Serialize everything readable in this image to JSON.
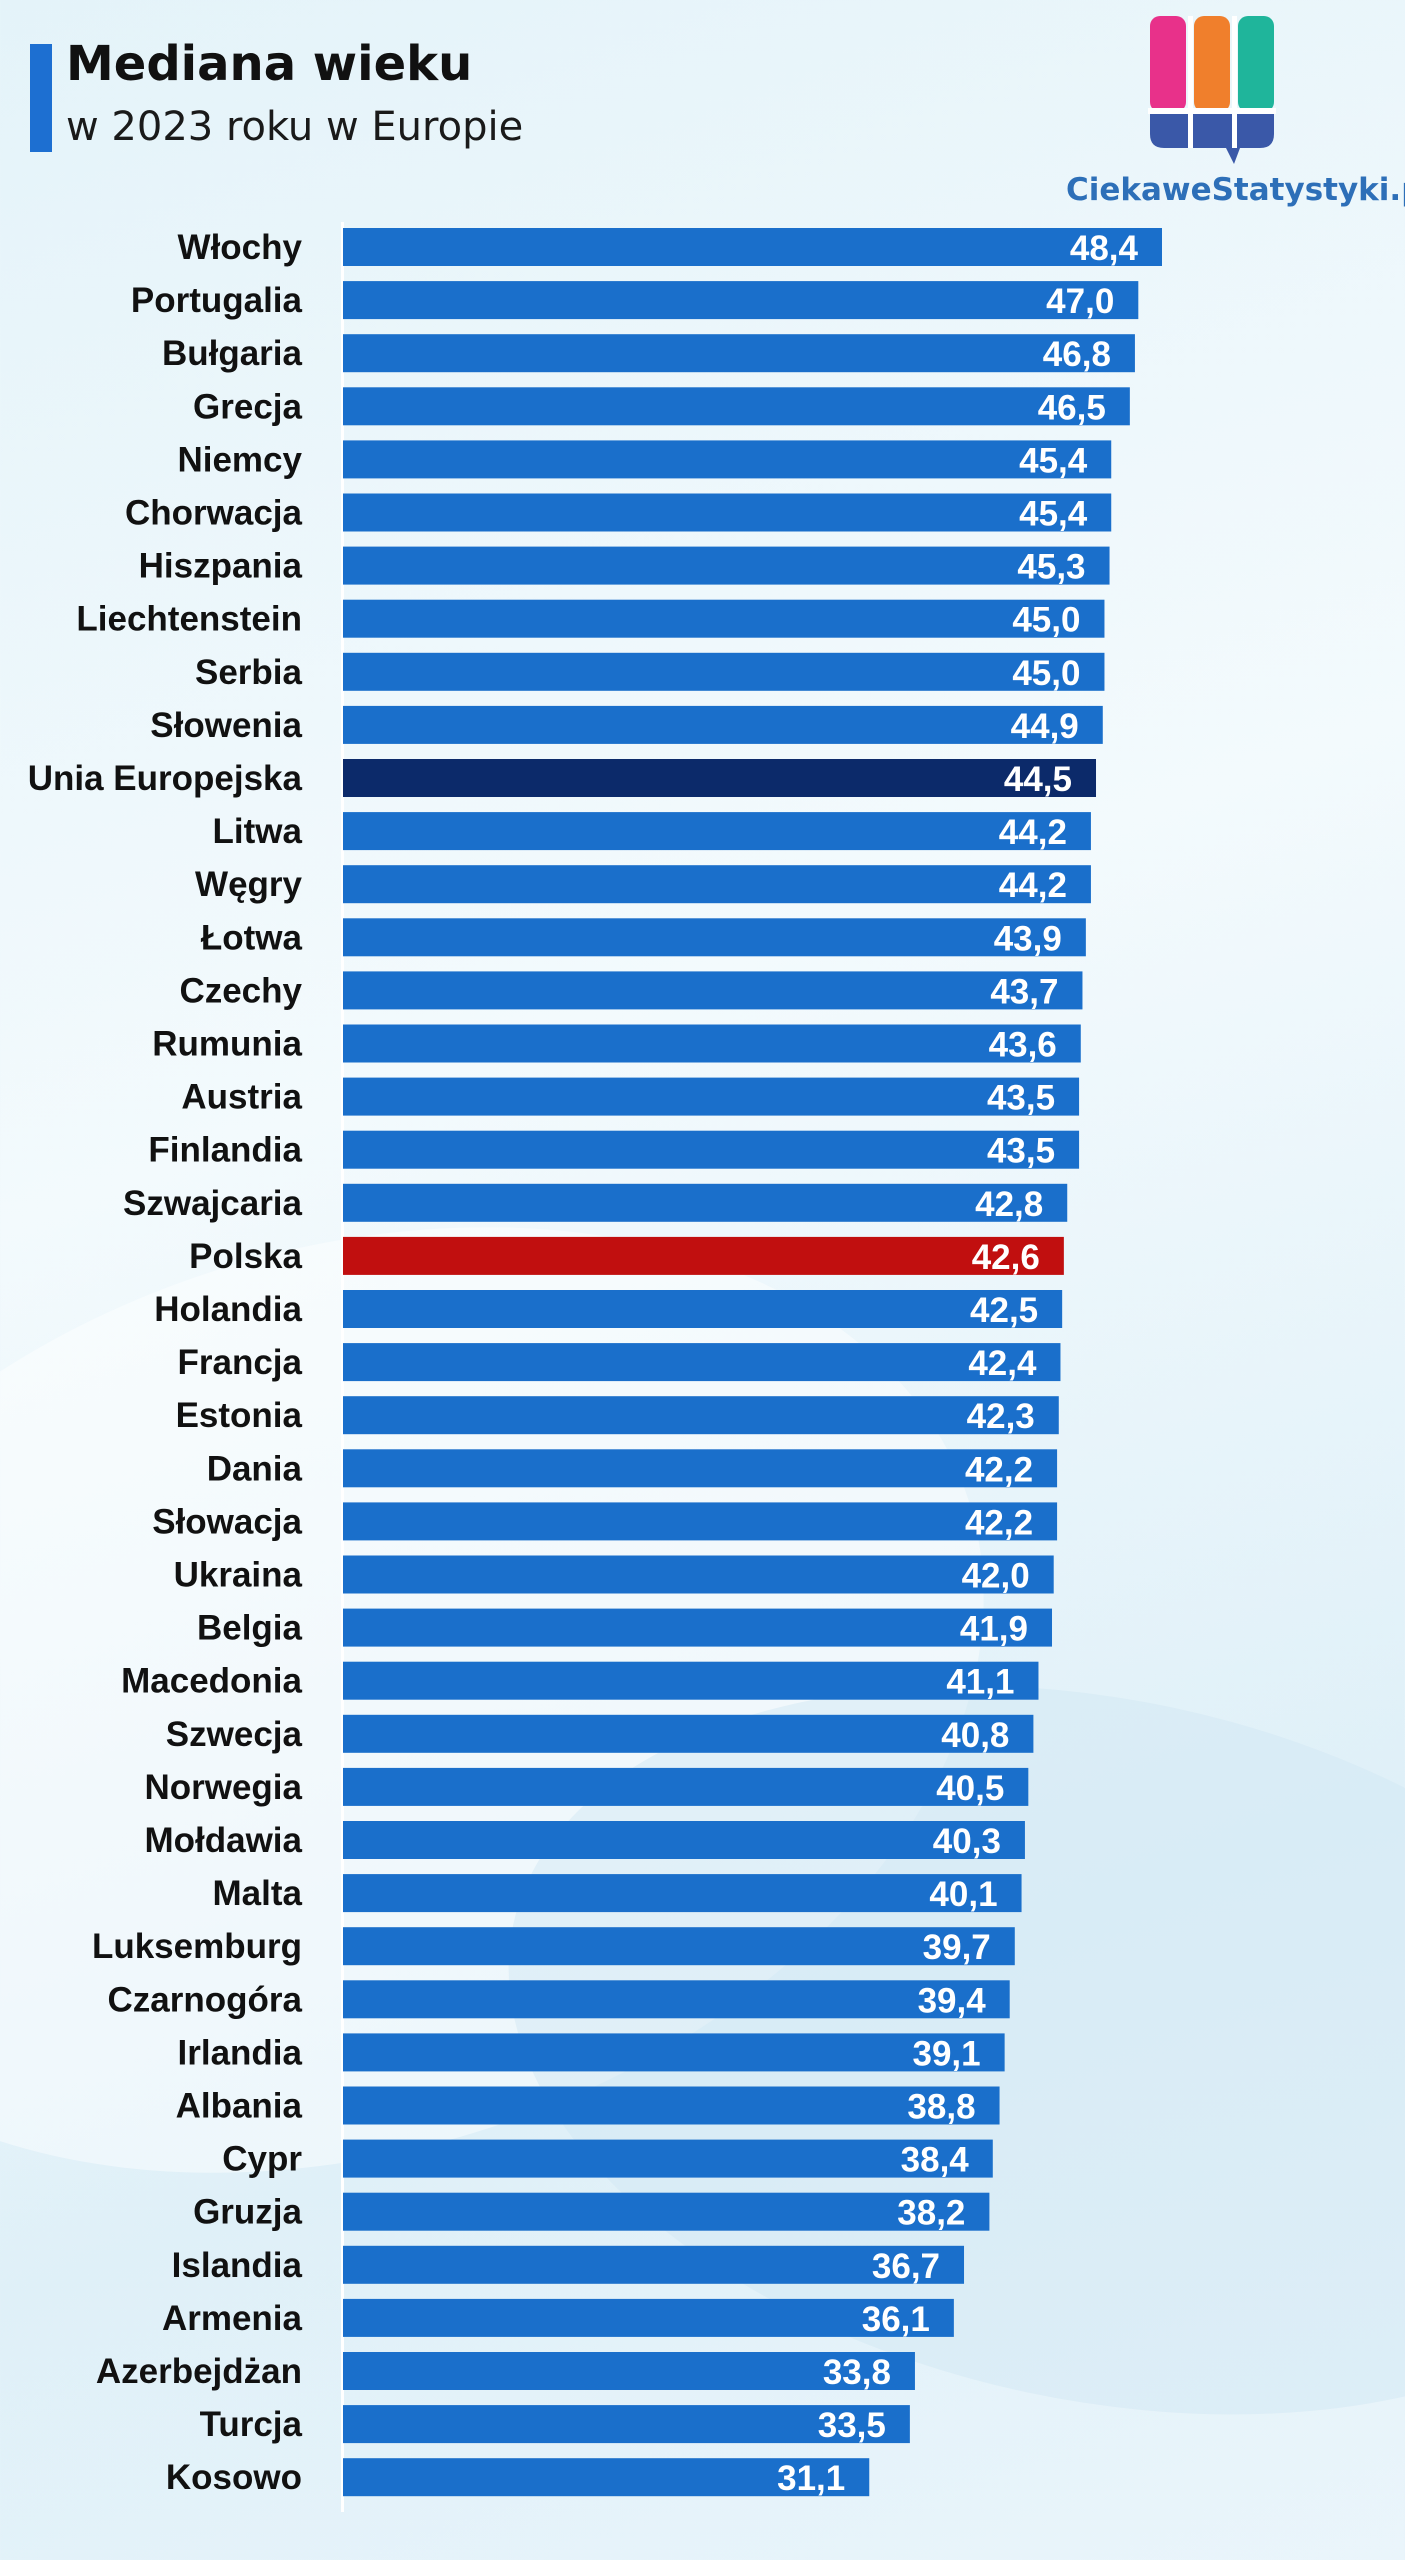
{
  "header": {
    "title": "Mediana wieku",
    "subtitle": "w 2023 roku w Europie"
  },
  "brand": {
    "name": "CiekaweStatystyki.pl",
    "logo_colors": [
      "#e8318a",
      "#f07f2c",
      "#1fb59b",
      "#3a58a8"
    ]
  },
  "colors": {
    "bar_default": "#1a6fcb",
    "bar_eu": "#0c2a6a",
    "bar_poland": "#c10f0f",
    "label_text": "#111111",
    "value_text": "#ffffff"
  },
  "chart_data": {
    "type": "bar",
    "orientation": "horizontal",
    "title": "Mediana wieku",
    "subtitle": "w 2023 roku w Europie",
    "xlim": [
      0,
      48.4
    ],
    "grid": false,
    "legend": "none",
    "categories": [
      "Włochy",
      "Portugalia",
      "Bułgaria",
      "Grecja",
      "Niemcy",
      "Chorwacja",
      "Hiszpania",
      "Liechtenstein",
      "Serbia",
      "Słowenia",
      "Unia Europejska",
      "Litwa",
      "Węgry",
      "Łotwa",
      "Czechy",
      "Rumunia",
      "Austria",
      "Finlandia",
      "Szwajcaria",
      "Polska",
      "Holandia",
      "Francja",
      "Estonia",
      "Dania",
      "Słowacja",
      "Ukraina",
      "Belgia",
      "Macedonia",
      "Szwecja",
      "Norwegia",
      "Mołdawia",
      "Malta",
      "Luksemburg",
      "Czarnogóra",
      "Irlandia",
      "Albania",
      "Cypr",
      "Gruzja",
      "Islandia",
      "Armenia",
      "Azerbejdżan",
      "Turcja",
      "Kosowo"
    ],
    "values": [
      48.4,
      47.0,
      46.8,
      46.5,
      45.4,
      45.4,
      45.3,
      45.0,
      45.0,
      44.9,
      44.5,
      44.2,
      44.2,
      43.9,
      43.7,
      43.6,
      43.5,
      43.5,
      42.8,
      42.6,
      42.5,
      42.4,
      42.3,
      42.2,
      42.2,
      42.0,
      41.9,
      41.1,
      40.8,
      40.5,
      40.3,
      40.1,
      39.7,
      39.4,
      39.1,
      38.8,
      38.4,
      38.2,
      36.7,
      36.1,
      33.8,
      33.5,
      31.1
    ],
    "value_labels": [
      "48,4",
      "47,0",
      "46,8",
      "46,5",
      "45,4",
      "45,4",
      "45,3",
      "45,0",
      "45,0",
      "44,9",
      "44,5",
      "44,2",
      "44,2",
      "43,9",
      "43,7",
      "43,6",
      "43,5",
      "43,5",
      "42,8",
      "42,6",
      "42,5",
      "42,4",
      "42,3",
      "42,2",
      "42,2",
      "42,0",
      "41,9",
      "41,1",
      "40,8",
      "40,5",
      "40,3",
      "40,1",
      "39,7",
      "39,4",
      "39,1",
      "38,8",
      "38,4",
      "38,2",
      "36,7",
      "36,1",
      "33,8",
      "33,5",
      "31,1"
    ],
    "highlight": {
      "Unia Europejska": "eu",
      "Polska": "poland"
    }
  }
}
